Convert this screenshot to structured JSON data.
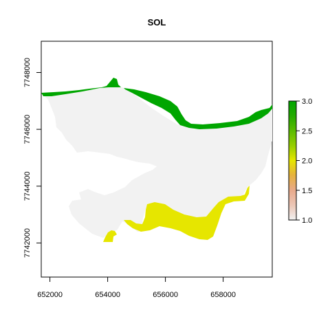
{
  "title": "SOL",
  "colors": {
    "background_zone": "#f2f2f2",
    "class_2": "#e6e600",
    "class_3": "#00a600",
    "axis": "#000000"
  },
  "map": {
    "x_range": [
      651700,
      659700
    ],
    "y_range": [
      7740800,
      7749100
    ],
    "x_ticks": [
      {
        "value": 652000,
        "label": "652000"
      },
      {
        "value": 654000,
        "label": "654000"
      },
      {
        "value": 656000,
        "label": "656000"
      },
      {
        "value": 658000,
        "label": "658000"
      }
    ],
    "y_ticks": [
      {
        "value": 7742000,
        "label": "7742000"
      },
      {
        "value": 7744000,
        "label": "7744000"
      },
      {
        "value": 7746000,
        "label": "7746000"
      },
      {
        "value": 7748000,
        "label": "7748000"
      }
    ]
  },
  "legend": {
    "min": 1.0,
    "max": 3.0,
    "colormap": "terrain",
    "ticks": [
      {
        "value": 1.0,
        "label": "1.0"
      },
      {
        "value": 1.5,
        "label": "1.5"
      },
      {
        "value": 2.0,
        "label": "2.0"
      },
      {
        "value": 2.5,
        "label": "2.5"
      },
      {
        "value": 3.0,
        "label": "3.0"
      }
    ]
  }
}
